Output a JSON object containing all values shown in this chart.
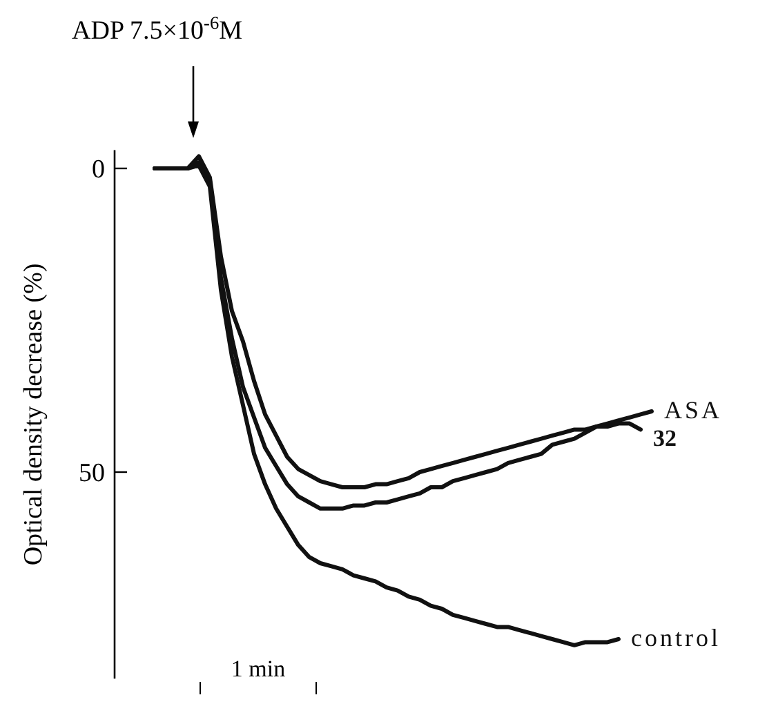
{
  "chart_data": {
    "type": "line",
    "ylabel": "Optical density decrease (%)",
    "annotations": [
      "ADP 7.5×10$^{-6}$M",
      "1 min"
    ],
    "categories": [
      null,
      null,
      null,
      null,
      null,
      null,
      null,
      null,
      null,
      null,
      null,
      null,
      null,
      null,
      null,
      null,
      null,
      null,
      null,
      null,
      null,
      null,
      null,
      null,
      null,
      null,
      null,
      null,
      null,
      null,
      null,
      null,
      null,
      null,
      null,
      null,
      null,
      null,
      null,
      null,
      null,
      null,
      null,
      null,
      null,
      null
    ],
    "ylim": [
      84,
      -3
    ],
    "yticks": [
      0,
      50
    ],
    "tick_labels": "y",
    "legend": false,
    "grid": false,
    "marker": "none",
    "line_style": "solid",
    "series": [
      {
        "name": "ASA",
        "color": "#111111",
        "values": [
          0,
          0,
          0,
          0,
          -1,
          2,
          18,
          28,
          36,
          41,
          46,
          49,
          52,
          54,
          55,
          56,
          56,
          56,
          55.5,
          55.5,
          55,
          55,
          54.5,
          54,
          53.5,
          52.5,
          52.5,
          51.5,
          51,
          50.5,
          50,
          49.5,
          48.5,
          48,
          47.5,
          47,
          45.5,
          45,
          44.5,
          43.5,
          42.5,
          42,
          41.5,
          41,
          40.5,
          40
        ]
      },
      {
        "name": "32",
        "color": "#111111",
        "values": [
          0,
          0,
          0,
          0,
          -2,
          1.5,
          14.5,
          23.5,
          28.5,
          35,
          40.5,
          44,
          47.5,
          49.5,
          50.5,
          51.5,
          52,
          52.5,
          52.5,
          52.5,
          52,
          52,
          51.5,
          51,
          50,
          49.5,
          49,
          48.5,
          48,
          47.5,
          47,
          46.5,
          46,
          45.5,
          45,
          44.5,
          44,
          43.5,
          43,
          43,
          42.5,
          42.5,
          42,
          42,
          43,
          null
        ]
      },
      {
        "name": "control",
        "color": "#111111",
        "values": [
          0,
          0,
          0,
          0,
          -0.5,
          3,
          20,
          31,
          39,
          47,
          52,
          56,
          59,
          62,
          64,
          65,
          65.5,
          66,
          67,
          67.5,
          68,
          69,
          69.5,
          70.5,
          71,
          72,
          72.5,
          73.5,
          74,
          74.5,
          75,
          75.5,
          75.5,
          76,
          76.5,
          77,
          77.5,
          78,
          78.5,
          78,
          78,
          78,
          77.5,
          null,
          null,
          null
        ]
      }
    ]
  }
}
